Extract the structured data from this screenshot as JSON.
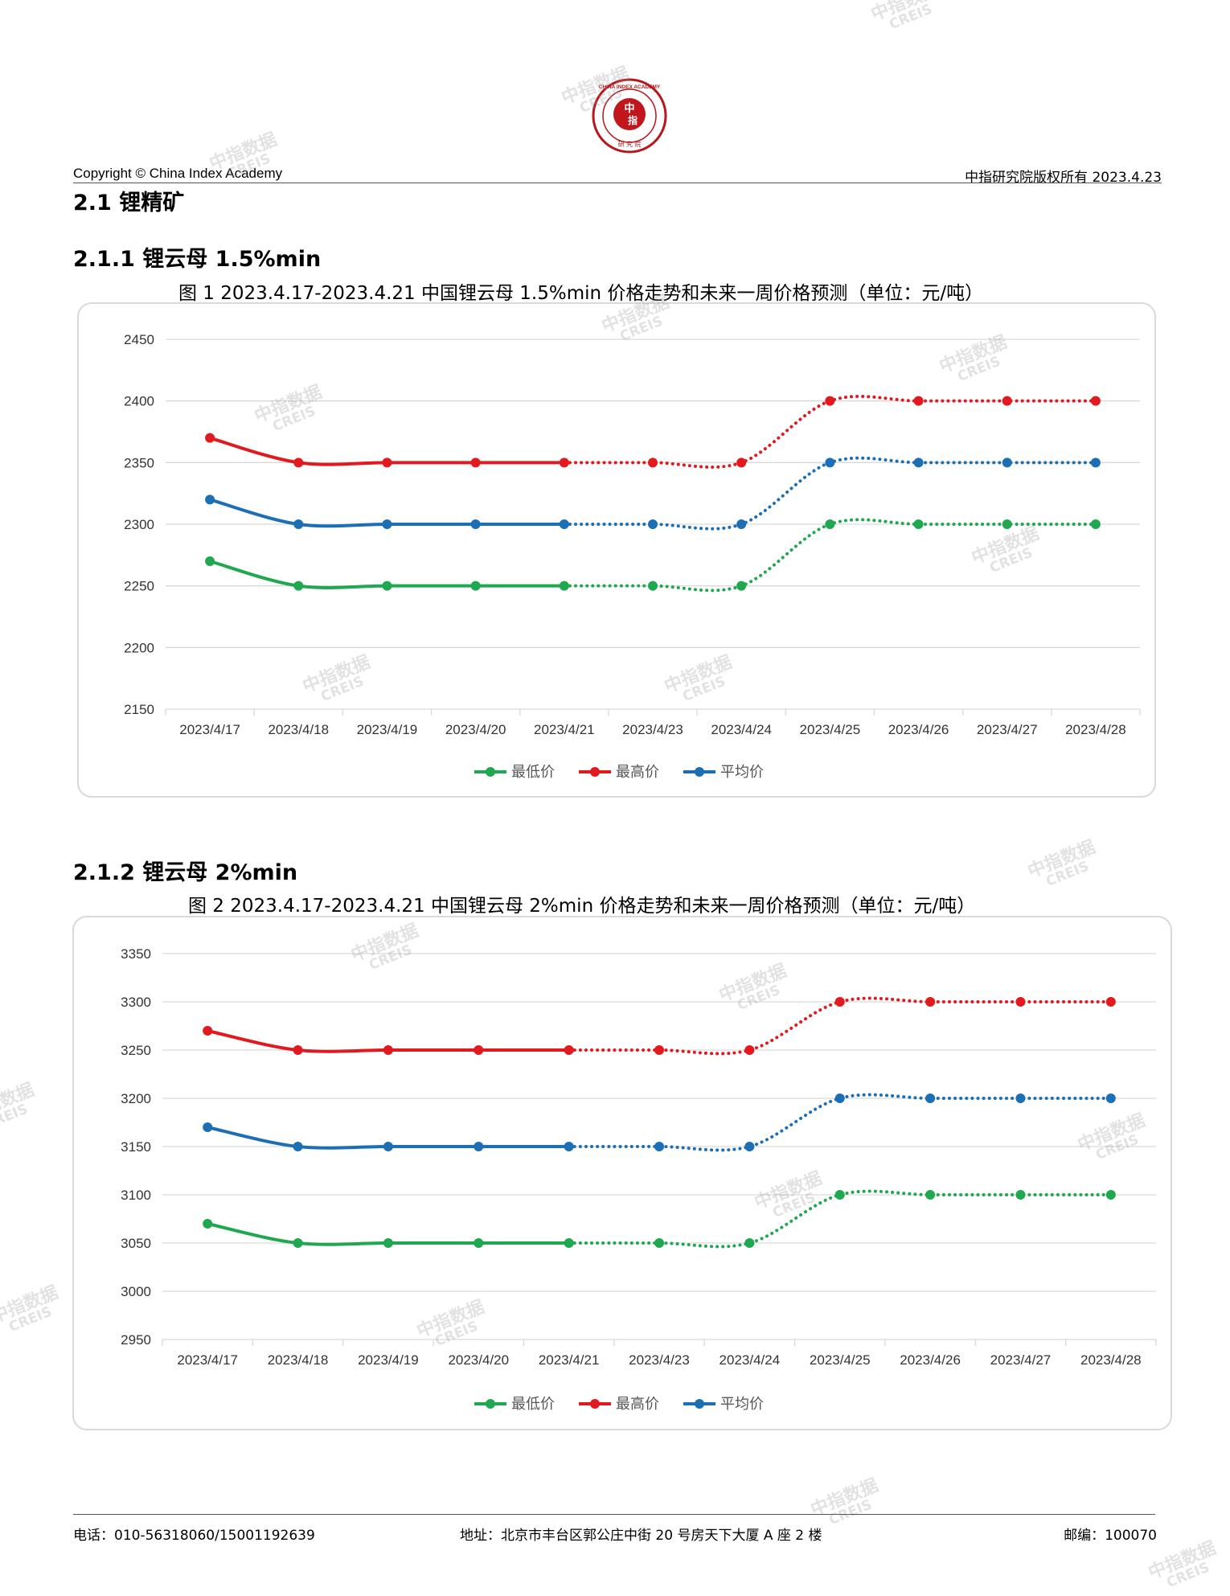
{
  "header": {
    "left": "Copyright © China Index Academy",
    "right": "中指研究院版权所有 2023.4.23",
    "logo_text": "CHINA INDEX ACADEMY 中指 研究院"
  },
  "section": {
    "h2": "2.1 锂精矿",
    "h3a": "2.1.1 锂云母 1.5%min",
    "h3b": "2.1.2 锂云母 2%min"
  },
  "figures": {
    "fig1_title": "图 1 2023.4.17-2023.4.21 中国锂云母 1.5%min 价格走势和未来一周价格预测（单位：元/吨）",
    "fig2_title": "图 2 2023.4.17-2023.4.21 中国锂云母 2%min 价格走势和未来一周价格预测（单位：元/吨）"
  },
  "watermark": {
    "line1": "中指数据",
    "line2": "CREIS"
  },
  "footer": {
    "phone": "电话：010-56318060/15001192639",
    "address": "地址：北京市丰台区郭公庄中街 20 号房天下大厦 A 座 2 楼",
    "zip": "邮编：100070"
  },
  "colors": {
    "min": "#1fa84f",
    "max": "#e2191f",
    "avg": "#1d6fb5",
    "grid": "#d9d9d9"
  },
  "chart_data": [
    {
      "type": "line",
      "categories": [
        "2023/4/17",
        "2023/4/18",
        "2023/4/19",
        "2023/4/20",
        "2023/4/21",
        "2023/4/23",
        "2023/4/24",
        "2023/4/25",
        "2023/4/26",
        "2023/4/27",
        "2023/4/28"
      ],
      "forecast_from_index": 4,
      "ylim": [
        2150,
        2450
      ],
      "yticks": [
        "2150",
        "2200",
        "2250",
        "2300",
        "2350",
        "2400",
        "2450"
      ],
      "series": [
        {
          "name": "最低价",
          "color": "#1fa84f",
          "values": [
            2270,
            2250,
            2250,
            2250,
            2250,
            2250,
            2250,
            2300,
            2300,
            2300,
            2300
          ]
        },
        {
          "name": "最高价",
          "color": "#e2191f",
          "values": [
            2370,
            2350,
            2350,
            2350,
            2350,
            2350,
            2350,
            2400,
            2400,
            2400,
            2400
          ]
        },
        {
          "name": "平均价",
          "color": "#1d6fb5",
          "values": [
            2320,
            2300,
            2300,
            2300,
            2300,
            2300,
            2300,
            2350,
            2350,
            2350,
            2350
          ]
        }
      ],
      "grid": true,
      "legend": "bottom"
    },
    {
      "type": "line",
      "categories": [
        "2023/4/17",
        "2023/4/18",
        "2023/4/19",
        "2023/4/20",
        "2023/4/21",
        "2023/4/23",
        "2023/4/24",
        "2023/4/25",
        "2023/4/26",
        "2023/4/27",
        "2023/4/28"
      ],
      "forecast_from_index": 4,
      "ylim": [
        2950,
        3350
      ],
      "yticks": [
        "2950",
        "3000",
        "3050",
        "3100",
        "3150",
        "3200",
        "3250",
        "3300",
        "3350"
      ],
      "series": [
        {
          "name": "最低价",
          "color": "#1fa84f",
          "values": [
            3070,
            3050,
            3050,
            3050,
            3050,
            3050,
            3050,
            3100,
            3100,
            3100,
            3100
          ]
        },
        {
          "name": "最高价",
          "color": "#e2191f",
          "values": [
            3270,
            3250,
            3250,
            3250,
            3250,
            3250,
            3250,
            3300,
            3300,
            3300,
            3300
          ]
        },
        {
          "name": "平均价",
          "color": "#1d6fb5",
          "values": [
            3170,
            3150,
            3150,
            3150,
            3150,
            3150,
            3150,
            3200,
            3200,
            3200,
            3200
          ]
        }
      ],
      "grid": true,
      "legend": "bottom"
    }
  ]
}
